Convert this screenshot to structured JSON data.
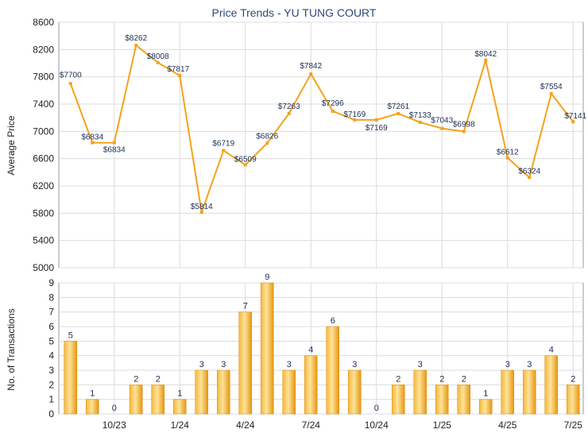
{
  "chart_data": [
    {
      "type": "line",
      "title": "Price Trends - YU TUNG COURT",
      "ylabel": "Average Price",
      "ylim": [
        5000,
        8600
      ],
      "yticks": [
        5000,
        5400,
        5800,
        6200,
        6600,
        7000,
        7400,
        7800,
        8200,
        8600
      ],
      "grid": true,
      "color": "#f4a21c",
      "x": [
        "2023-08",
        "2023-09",
        "2023-10",
        "2023-11",
        "2023-12",
        "2024-01",
        "2024-02",
        "2024-03",
        "2024-04",
        "2024-05",
        "2024-06",
        "2024-07",
        "2024-08",
        "2024-09",
        "2024-10",
        "2024-11",
        "2024-12",
        "2025-01",
        "2025-02",
        "2025-03",
        "2025-04",
        "2025-05",
        "2025-06",
        "2025-07"
      ],
      "values": [
        7700,
        6834,
        6834,
        8262,
        8008,
        7817,
        5814,
        6719,
        6509,
        6826,
        7263,
        7842,
        7296,
        7169,
        7169,
        7261,
        7133,
        7043,
        6998,
        8042,
        6612,
        6324,
        7554,
        7141
      ],
      "labels": [
        "$7700",
        "$6834",
        "$6834",
        "$8262",
        "$8008",
        "$7817",
        "$5814",
        "$6719",
        "$6509",
        "$6826",
        "$7263",
        "$7842",
        "$7296",
        "$7169",
        "$7169",
        "$7261",
        "$7133",
        "$7043",
        "$6998",
        "$8042",
        "$6612",
        "$6324",
        "$7554",
        "$7141"
      ]
    },
    {
      "type": "bar",
      "ylabel": "No. of Transactions",
      "ylim": [
        0,
        9
      ],
      "yticks": [
        0,
        1,
        2,
        3,
        4,
        5,
        6,
        7,
        8,
        9
      ],
      "grid": true,
      "color": "#f4a21c",
      "x": [
        "2023-08",
        "2023-09",
        "2023-10",
        "2023-11",
        "2023-12",
        "2024-01",
        "2024-02",
        "2024-03",
        "2024-04",
        "2024-05",
        "2024-06",
        "2024-07",
        "2024-08",
        "2024-09",
        "2024-10",
        "2024-11",
        "2024-12",
        "2025-01",
        "2025-02",
        "2025-03",
        "2025-04",
        "2025-05",
        "2025-06",
        "2025-07"
      ],
      "values": [
        5,
        1,
        0,
        2,
        2,
        1,
        3,
        3,
        7,
        9,
        3,
        4,
        6,
        3,
        0,
        2,
        3,
        2,
        2,
        1,
        3,
        3,
        4,
        2
      ],
      "xtick_labels": [
        {
          "x": "2023-10",
          "label": "10/23"
        },
        {
          "x": "2024-01",
          "label": "1/24"
        },
        {
          "x": "2024-04",
          "label": "4/24"
        },
        {
          "x": "2024-07",
          "label": "7/24"
        },
        {
          "x": "2024-10",
          "label": "10/24"
        },
        {
          "x": "2025-01",
          "label": "1/25"
        },
        {
          "x": "2025-04",
          "label": "4/25"
        },
        {
          "x": "2025-07",
          "label": "7/25"
        }
      ]
    }
  ]
}
